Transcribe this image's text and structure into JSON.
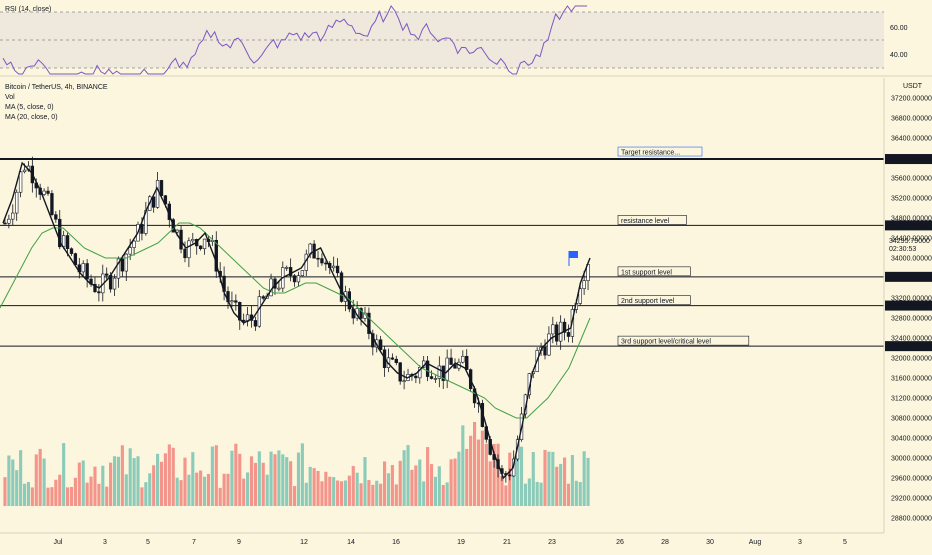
{
  "rsi_panel": {
    "title": "RSI (14, close)",
    "upper_label": "60.00",
    "lower_label": "40.00",
    "line_color": "#7e57c2",
    "band_color": "#e9e2d8"
  },
  "main_panel": {
    "symbol_line": "Bitcoin / TetherUS, 4h, BINANCE",
    "indicators": [
      "Vol",
      "MA (5, close, 0)",
      "MA (20, close, 0)"
    ],
    "currency": "USDT",
    "current_price": "34295.79000",
    "countdown": "02:30:53"
  },
  "colors": {
    "up": "#ffffff",
    "down": "#131722",
    "ma5": "#131722",
    "ma20": "#43a047",
    "vol_up": "#7fc7b5",
    "vol_down": "#f28b82",
    "background": "#fbf6dd",
    "level_line": "#131722",
    "target_text": "#2962ff",
    "flag": "#2962ff"
  },
  "chart_data": {
    "type": "line",
    "title": "Bitcoin / TetherUS, 4h, BINANCE",
    "ylim": [
      28600,
      37400
    ],
    "y_ticks": [
      "37200.000000",
      "36800.000000",
      "36400.000000",
      "36000.000000",
      "35600.000000",
      "35200.000000",
      "34800.000000",
      "34400.000000",
      "34000.000000",
      "33600.000000",
      "33200.000000",
      "32800.000000",
      "32400.000000",
      "32000.000000",
      "31600.000000",
      "31200.000000",
      "30800.000000",
      "30400.000000",
      "30000.000000",
      "29600.000000",
      "29200.000000",
      "28800.000000"
    ],
    "x_ticks": [
      "Jul",
      "3",
      "5",
      "7",
      "9",
      "12",
      "14",
      "16",
      "19",
      "21",
      "23",
      "26",
      "28",
      "30",
      "Aug",
      "3",
      "5"
    ],
    "levels": [
      {
        "name": "Target resistance...",
        "value": 35979.2999,
        "price_label": "35979.29990",
        "thick": true
      },
      {
        "name": "resistance level",
        "value": 34652.40667,
        "price_label": "34652.40667",
        "thick": false
      },
      {
        "name": "1st support level",
        "value": 33623.16842,
        "price_label": "33623.16842",
        "thick": false
      },
      {
        "name": "2nd support level",
        "value": 33048.6983,
        "price_label": "33048.69830",
        "thick": false
      },
      {
        "name": "3rd support level/critical level",
        "value": 32237.39195,
        "price_label": "32237.39195",
        "thick": false
      }
    ],
    "ma5": [
      34700,
      35200,
      35900,
      35700,
      35300,
      34800,
      34300,
      34000,
      33700,
      33500,
      33400,
      33600,
      33900,
      34200,
      34500,
      35000,
      35400,
      35000,
      34500,
      34200,
      34300,
      34500,
      34000,
      33300,
      32900,
      32700,
      32800,
      33100,
      33400,
      33600,
      33700,
      33800,
      34100,
      34200,
      33800,
      33400,
      33100,
      32800,
      32600,
      32200,
      31900,
      31700,
      31600,
      31700,
      31900,
      31800,
      31700,
      31900,
      31800,
      31400,
      30800,
      30100,
      29600,
      29800,
      30700,
      31700,
      32200,
      32400,
      32500,
      32600,
      33500,
      34000
    ],
    "ma20": [
      33000,
      33400,
      33800,
      34200,
      34500,
      34600,
      34600,
      34400,
      34200,
      34100,
      34000,
      34000,
      34000,
      34100,
      34200,
      34300,
      34500,
      34700,
      34700,
      34600,
      34400,
      34200,
      34000,
      33800,
      33600,
      33400,
      33300,
      33300,
      33400,
      33500,
      33500,
      33400,
      33300,
      33200,
      33000,
      32800,
      32600,
      32400,
      32200,
      32000,
      31800,
      31700,
      31600,
      31500,
      31400,
      31300,
      31200,
      31000,
      30900,
      30800,
      30800,
      31000,
      31200,
      31500,
      31800,
      32300,
      32800
    ]
  }
}
